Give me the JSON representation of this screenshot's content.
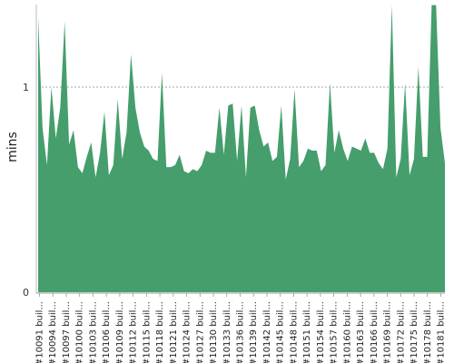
{
  "chart_data": {
    "type": "area",
    "title": "",
    "xlabel": "",
    "ylabel": "mins",
    "ylim": [
      0,
      1.4
    ],
    "yticks": [
      0,
      1
    ],
    "gridlines": [
      1
    ],
    "fill_color": "#459e6c",
    "x_tick_labels": [
      "#10091 buil...",
      "#10094 buil...",
      "#10097 buil...",
      "#10100 buil...",
      "#10103 buil...",
      "#10106 buil...",
      "#10109 buil...",
      "#10112 buil...",
      "#10115 buil...",
      "#10118 buil...",
      "#10121 buil...",
      "#10124 buil...",
      "#10127 buil...",
      "#10130 buil...",
      "#10133 buil...",
      "#10136 buil...",
      "#10139 buil...",
      "#10142 buil...",
      "#10145 buil...",
      "#10148 buil...",
      "#10151 buil...",
      "#10154 buil...",
      "#10157 buil...",
      "#10160 buil...",
      "#10163 buil...",
      "#10166 buil...",
      "#10169 buil...",
      "#10172 buil...",
      "#10175 buil...",
      "#10178 buil...",
      "#10181 buil..."
    ],
    "values": [
      1.34,
      0.8,
      0.62,
      1.0,
      0.75,
      0.9,
      1.32,
      0.72,
      0.79,
      0.61,
      0.58,
      0.66,
      0.73,
      0.56,
      0.68,
      0.88,
      0.57,
      0.62,
      0.94,
      0.65,
      0.78,
      1.16,
      0.9,
      0.78,
      0.71,
      0.69,
      0.65,
      0.64,
      1.07,
      0.61,
      0.61,
      0.62,
      0.67,
      0.59,
      0.58,
      0.6,
      0.59,
      0.62,
      0.69,
      0.68,
      0.68,
      0.9,
      0.67,
      0.91,
      0.92,
      0.64,
      0.91,
      0.56,
      0.9,
      0.91,
      0.79,
      0.71,
      0.73,
      0.64,
      0.66,
      0.91,
      0.55,
      0.65,
      0.99,
      0.61,
      0.64,
      0.7,
      0.69,
      0.69,
      0.59,
      0.62,
      1.02,
      0.68,
      0.79,
      0.7,
      0.64,
      0.71,
      0.7,
      0.69,
      0.75,
      0.68,
      0.68,
      0.63,
      0.6,
      0.7,
      1.4,
      0.56,
      0.65,
      1.02,
      0.57,
      0.65,
      1.1,
      0.66,
      0.66,
      1.4,
      1.4,
      0.8,
      0.63
    ]
  }
}
